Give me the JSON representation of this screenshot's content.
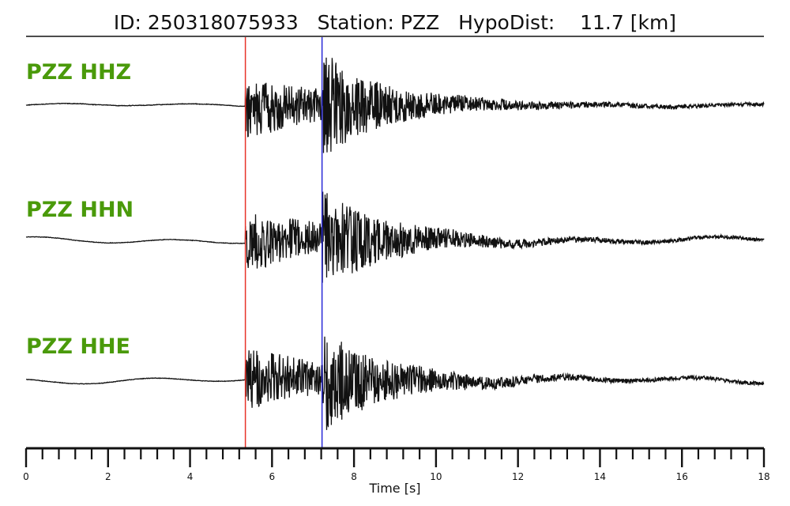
{
  "header": {
    "id_label": "ID:",
    "id_value": "250318075933",
    "station_label": "Station:",
    "station_value": "PZZ",
    "hypodist_label": "HypoDist:",
    "hypodist_value": "11.7 [km]"
  },
  "chart_data": {
    "type": "line",
    "xlabel": "Time [s]",
    "xlim": [
      0,
      18
    ],
    "x_major_ticks": [
      0,
      2,
      4,
      6,
      8,
      10,
      12,
      14,
      16,
      18
    ],
    "x_minor_step": 0.4,
    "grid": false,
    "p_pick_time": 5.35,
    "s_pick_time": 7.22,
    "p_pick_color": "#e8332a",
    "s_pick_color": "#2a2ad8",
    "trace_label_color": "#4a9a0a",
    "series": [
      {
        "name": "PZZ HHZ",
        "noise_amp": 0.03,
        "max_amp": 0.98,
        "onset": 5.35
      },
      {
        "name": "PZZ HHN",
        "noise_amp": 0.06,
        "max_amp": 0.95,
        "onset": 5.35
      },
      {
        "name": "PZZ HHE",
        "noise_amp": 0.06,
        "max_amp": 0.97,
        "onset": 5.35
      }
    ]
  }
}
